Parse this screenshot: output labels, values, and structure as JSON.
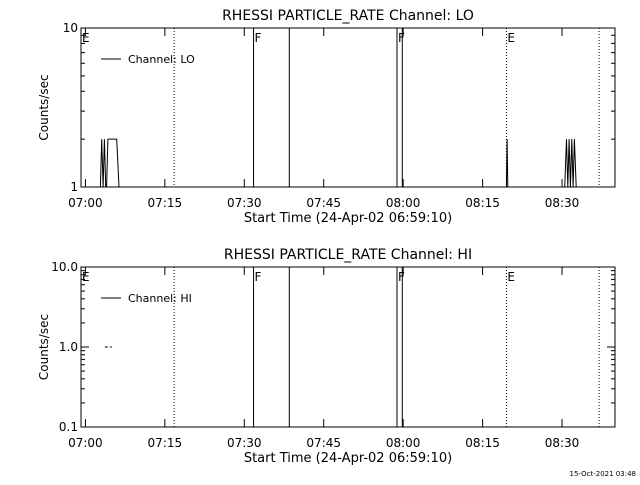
{
  "chart_data": [
    {
      "type": "line",
      "title": "RHESSI PARTICLE_RATE Channel: LO",
      "xlabel": "Start Time (24-Apr-02 06:59:10)",
      "ylabel": "Counts/sec",
      "y_scale": "log",
      "ylim": [
        1,
        10
      ],
      "yticks": [
        {
          "value": 1,
          "label": "1"
        },
        {
          "value": 10,
          "label": "10"
        }
      ],
      "xlim": [
        "06:59:10",
        "08:40:00"
      ],
      "xticks": [
        "07:00",
        "07:15",
        "07:30",
        "07:45",
        "08:00",
        "08:15",
        "08:30"
      ],
      "legend": {
        "placement": "top-left",
        "entries": [
          "Channel: LO"
        ]
      },
      "series": [
        {
          "name": "Channel: LO",
          "points": [
            [
              "07:02:50",
              1
            ],
            [
              "07:03:05",
              2
            ],
            [
              "07:03:20",
              1
            ],
            [
              "07:03:35",
              2
            ],
            [
              "07:03:50",
              1
            ],
            [
              "07:04:00",
              1
            ],
            [
              "07:04:15",
              2
            ],
            [
              "07:05:55",
              2
            ],
            [
              "07:06:20",
              1
            ],
            [
              "08:19:30",
              1
            ],
            [
              "08:19:38",
              2
            ],
            [
              "08:19:46",
              1
            ],
            [
              "08:30:30",
              1
            ],
            [
              "08:30:50",
              2
            ],
            [
              "08:31:05",
              1
            ],
            [
              "08:31:20",
              2
            ],
            [
              "08:31:35",
              1
            ],
            [
              "08:31:50",
              2
            ],
            [
              "08:32:05",
              1
            ],
            [
              "08:32:20",
              2
            ],
            [
              "08:32:40",
              1
            ]
          ]
        }
      ],
      "event_lines": [
        {
          "time": "07:16:45",
          "style": "dotted",
          "label": ""
        },
        {
          "time": "07:31:45",
          "style": "solid",
          "label": "F"
        },
        {
          "time": "07:38:30",
          "style": "solid",
          "label": ""
        },
        {
          "time": "07:58:50",
          "style": "solid",
          "label": "F"
        },
        {
          "time": "07:59:50",
          "style": "solid",
          "label": ""
        },
        {
          "time": "08:19:30",
          "style": "dotted",
          "label": "E"
        },
        {
          "time": "08:37:00",
          "style": "dotted",
          "label": ""
        }
      ],
      "edge_label": "E"
    },
    {
      "type": "line",
      "title": "RHESSI PARTICLE_RATE Channel: HI",
      "xlabel": "Start Time (24-Apr-02 06:59:10)",
      "ylabel": "Counts/sec",
      "y_scale": "log",
      "ylim": [
        0.1,
        10
      ],
      "yticks": [
        {
          "value": 0.1,
          "label": "0.1"
        },
        {
          "value": 1,
          "label": "1.0"
        },
        {
          "value": 10,
          "label": "10.0"
        }
      ],
      "xlim": [
        "06:59:10",
        "08:40:00"
      ],
      "xticks": [
        "07:00",
        "07:15",
        "07:30",
        "07:45",
        "08:00",
        "08:15",
        "08:30"
      ],
      "legend": {
        "placement": "top-left",
        "entries": [
          "Channel: HI"
        ]
      },
      "series": [
        {
          "name": "Channel: HI",
          "points": [
            [
              "07:03:40",
              1
            ],
            [
              "07:05:00",
              1
            ]
          ],
          "style": "dashed"
        }
      ],
      "event_lines": [
        {
          "time": "07:16:45",
          "style": "dotted",
          "label": ""
        },
        {
          "time": "07:31:45",
          "style": "solid",
          "label": "F"
        },
        {
          "time": "07:38:30",
          "style": "solid",
          "label": ""
        },
        {
          "time": "07:58:50",
          "style": "solid",
          "label": "F"
        },
        {
          "time": "07:59:50",
          "style": "solid",
          "label": ""
        },
        {
          "time": "08:19:30",
          "style": "dotted",
          "label": "E"
        },
        {
          "time": "08:37:00",
          "style": "dotted",
          "label": ""
        }
      ],
      "edge_label": "E"
    }
  ],
  "footer": {
    "timestamp": "15-Oct-2021 03:48"
  },
  "colors": {
    "background": "#ffffff",
    "ink": "#000000"
  }
}
